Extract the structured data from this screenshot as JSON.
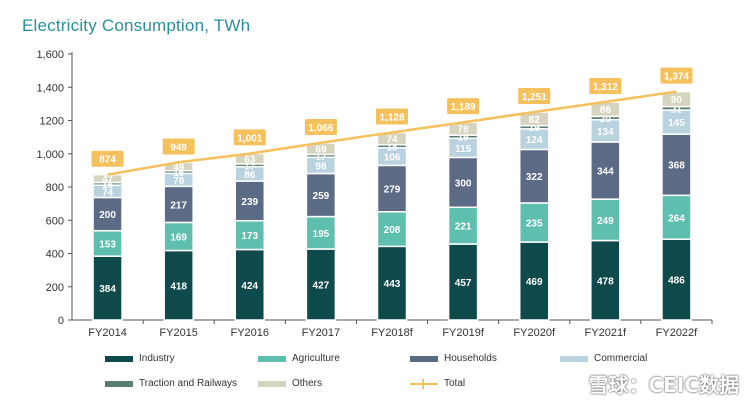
{
  "title": "Electricity Consumption, TWh",
  "watermark": "雪球：CEIC数据",
  "colors": {
    "Industry": "#0e4a4c",
    "Agriculture": "#5fbfae",
    "Households": "#5c6b85",
    "Commercial": "#b8d2df",
    "Traction and Railways": "#5a7e72",
    "Others": "#d6d3be",
    "Total": "#f5c15d"
  },
  "chart_data": {
    "type": "bar",
    "stacked": true,
    "title": "Electricity Consumption, TWh",
    "categories": [
      "FY2014",
      "FY2015",
      "FY2016",
      "FY2017",
      "FY2018f",
      "FY2019f",
      "FY2020f",
      "FY2021f",
      "FY2022f"
    ],
    "series": [
      {
        "name": "Industry",
        "values": [
          384,
          418,
          424,
          427,
          443,
          457,
          469,
          478,
          486
        ]
      },
      {
        "name": "Agriculture",
        "values": [
          153,
          169,
          173,
          195,
          208,
          221,
          235,
          249,
          264
        ]
      },
      {
        "name": "Households",
        "values": [
          200,
          217,
          239,
          259,
          279,
          300,
          322,
          344,
          368
        ]
      },
      {
        "name": "Commercial",
        "values": [
          74,
          78,
          86,
          98,
          106,
          115,
          124,
          134,
          145
        ]
      },
      {
        "name": "Traction and Railways",
        "values": [
          16,
          16,
          17,
          17,
          18,
          19,
          19,
          20,
          21
        ]
      },
      {
        "name": "Others",
        "values": [
          47,
          49,
          63,
          69,
          74,
          78,
          82,
          86,
          90
        ]
      }
    ],
    "total": {
      "name": "Total",
      "type": "line",
      "values": [
        874,
        949,
        1001,
        1066,
        1128,
        1189,
        1251,
        1312,
        1374
      ],
      "labels": [
        "874",
        "949",
        "1,001",
        "1,066",
        "1,128",
        "1,189",
        "1,251",
        "1,312",
        "1,374"
      ]
    },
    "ylim": [
      0,
      1600
    ],
    "yticks": [
      0,
      200,
      400,
      600,
      800,
      1000,
      1200,
      1400,
      1600
    ],
    "ytick_labels": [
      "0",
      "200",
      "400",
      "600",
      "800",
      "1,000",
      "1200",
      "1,400",
      "1,600"
    ],
    "legend_position": "bottom",
    "grid": false
  },
  "legend": [
    {
      "name": "Industry",
      "kind": "bar"
    },
    {
      "name": "Agriculture",
      "kind": "bar"
    },
    {
      "name": "Households",
      "kind": "bar"
    },
    {
      "name": "Commercial",
      "kind": "bar"
    },
    {
      "name": "Traction and Railways",
      "kind": "bar"
    },
    {
      "name": "Others",
      "kind": "bar"
    },
    {
      "name": "Total",
      "kind": "line"
    }
  ]
}
